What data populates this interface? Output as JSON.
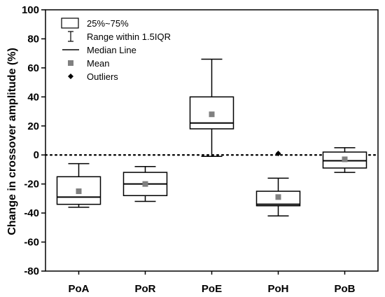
{
  "chart_data": {
    "type": "box",
    "ylabel": "Change in crossover amplitude (%)",
    "xlabel": "",
    "ylim": [
      -80,
      100
    ],
    "yticks": [
      -80,
      -60,
      -40,
      -20,
      0,
      20,
      40,
      60,
      80,
      100
    ],
    "reference_line": {
      "y": 0,
      "style": "dotted"
    },
    "categories": [
      "PoA",
      "PoR",
      "PoE",
      "PoH",
      "PoB"
    ],
    "boxes": [
      {
        "category": "PoA",
        "whisker_low": -36,
        "q1": -34,
        "median": -29,
        "q3": -15,
        "whisker_high": -6,
        "mean": -25,
        "outliers": []
      },
      {
        "category": "PoR",
        "whisker_low": -32,
        "q1": -28,
        "median": -20,
        "q3": -12,
        "whisker_high": -8,
        "mean": -20,
        "outliers": []
      },
      {
        "category": "PoE",
        "whisker_low": -1,
        "q1": 18,
        "median": 22,
        "q3": 40,
        "whisker_high": 66,
        "mean": 28,
        "outliers": []
      },
      {
        "category": "PoH",
        "whisker_low": -42,
        "q1": -35,
        "median": -34,
        "q3": -25,
        "whisker_high": -16,
        "mean": -29,
        "outliers": [
          1
        ]
      },
      {
        "category": "PoB",
        "whisker_low": -12,
        "q1": -9,
        "median": -4,
        "q3": 2,
        "whisker_high": 5,
        "mean": -3,
        "outliers": []
      }
    ],
    "legend": {
      "placement": "top-left",
      "items": [
        {
          "symbol": "box",
          "label": "25%~75%"
        },
        {
          "symbol": "whisker",
          "label": "Range within 1.5IQR"
        },
        {
          "symbol": "line",
          "label": "Median Line"
        },
        {
          "symbol": "square",
          "label": "Mean"
        },
        {
          "symbol": "diamond",
          "label": "Outliers"
        }
      ]
    },
    "colors": {
      "box": "#000000",
      "mean": "#808080",
      "outlier": "#000000"
    }
  }
}
